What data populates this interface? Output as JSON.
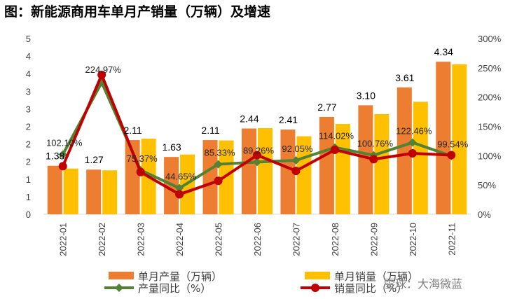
{
  "title": "图：新能源商用车单月产销量（万辆）及增速",
  "watermark": "雪球：大海微蓝",
  "chart_data": {
    "type": "bar+line",
    "categories": [
      "2022-01",
      "2022-02",
      "2022-03",
      "2022-04",
      "2022-05",
      "2022-06",
      "2022-07",
      "2022-08",
      "2022-09",
      "2022-10",
      "2022-11"
    ],
    "left_axis": {
      "ticks": [
        "0",
        "1",
        "1",
        "2",
        "2",
        "2",
        "3",
        "3",
        "4",
        "4",
        "5"
      ],
      "range": [
        0,
        5
      ]
    },
    "right_axis": {
      "ticks": [
        "0%",
        "50%",
        "100%",
        "150%",
        "200%",
        "250%",
        "300%"
      ],
      "range": [
        0,
        300
      ]
    },
    "series": [
      {
        "name": "单月产量（万辆）",
        "kind": "bar",
        "color": "#ED7D31",
        "values": [
          1.38,
          1.27,
          2.11,
          1.63,
          2.11,
          2.44,
          2.41,
          2.77,
          3.1,
          3.61,
          4.34
        ],
        "labels": [
          "1.38",
          "1.27",
          "2.11",
          "1.63",
          "2.11",
          "2.44",
          "2.41",
          "2.77",
          "3.10",
          "3.61",
          "4.34"
        ]
      },
      {
        "name": "单月销量（万辆）",
        "kind": "bar",
        "color": "#FFC000",
        "values": [
          1.3,
          1.25,
          2.15,
          1.7,
          2.1,
          2.45,
          2.22,
          2.57,
          2.85,
          3.2,
          4.27
        ]
      },
      {
        "name": "产量同比（%）",
        "kind": "line",
        "axis": "right",
        "color": "#548235",
        "values": [
          102.1,
          224.97,
          75.37,
          44.65,
          85.33,
          89.26,
          92.05,
          114.02,
          100.76,
          122.46,
          99.54
        ],
        "labels": [
          "102.10%",
          "224.97%",
          "75.37%",
          "44.65%",
          "85.33%",
          "89.26%",
          "92.05%",
          "114.02%",
          "100.76%",
          "122.46%",
          "99.54%"
        ]
      },
      {
        "name": "销量同比（%）",
        "kind": "line",
        "axis": "right",
        "color": "#C00000",
        "values": [
          82,
          238,
          72,
          34,
          57,
          101,
          74,
          110,
          94,
          104,
          101
        ]
      }
    ],
    "legend_position": "bottom",
    "grid": false
  }
}
